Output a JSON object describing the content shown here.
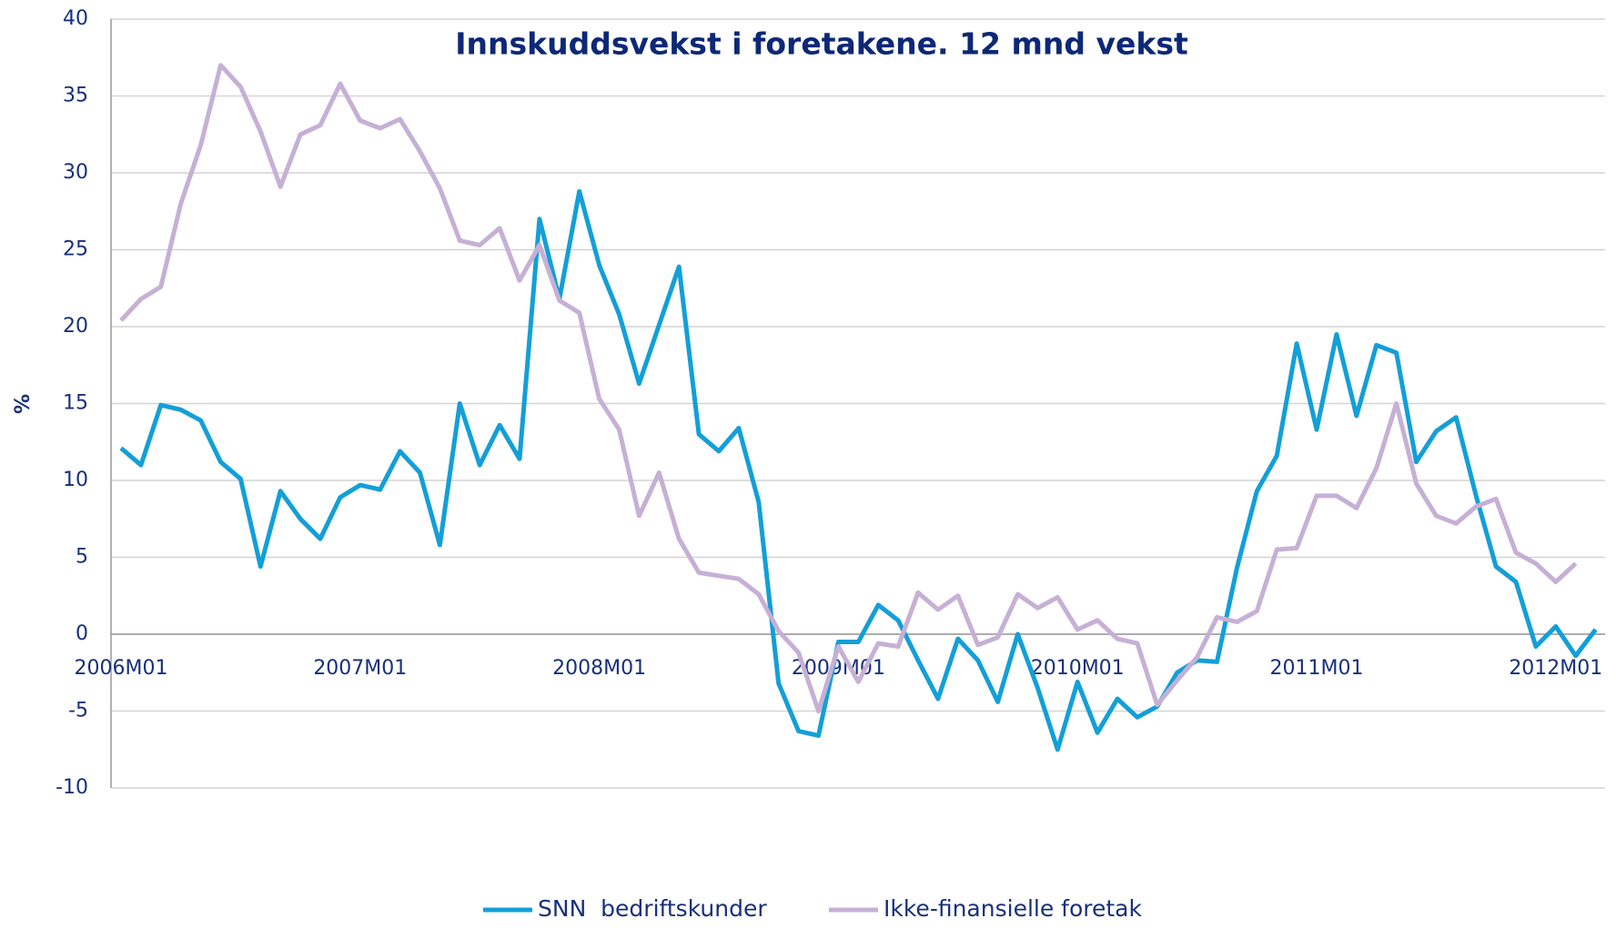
{
  "chart_data": {
    "type": "line",
    "title": "Innskuddsvekst i foretakene. 12 mnd vekst",
    "y_label": "%",
    "categories": [
      "2006M01",
      null,
      null,
      null,
      null,
      null,
      null,
      null,
      null,
      null,
      null,
      null,
      "2007M01",
      null,
      null,
      null,
      null,
      null,
      null,
      null,
      null,
      null,
      null,
      null,
      "2008M01",
      null,
      null,
      null,
      null,
      null,
      null,
      null,
      null,
      null,
      null,
      null,
      "2009M01",
      null,
      null,
      null,
      null,
      null,
      null,
      null,
      null,
      null,
      null,
      null,
      "2010M01",
      null,
      null,
      null,
      null,
      null,
      null,
      null,
      null,
      null,
      null,
      null,
      "2011M01",
      null,
      null,
      null,
      null,
      null,
      null,
      null,
      null,
      null,
      null,
      null,
      "2012M01",
      null,
      null
    ],
    "series": [
      {
        "name": "SNN  bedriftskunder",
        "color": "#139fd8",
        "values": [
          12.1,
          11.0,
          14.9,
          14.6,
          13.9,
          11.2,
          10.1,
          4.4,
          9.3,
          7.5,
          6.2,
          8.9,
          9.7,
          9.4,
          11.9,
          10.5,
          5.8,
          15.0,
          11.0,
          13.6,
          11.4,
          27.0,
          21.8,
          28.8,
          24.0,
          20.8,
          16.3,
          20.1,
          23.9,
          13.0,
          11.9,
          13.4,
          8.6,
          -3.2,
          -6.3,
          -6.6,
          -0.5,
          -0.5,
          1.9,
          0.9,
          -1.7,
          -4.2,
          -0.3,
          -1.7,
          -4.4,
          0.0,
          -3.5,
          -7.5,
          -3.1,
          -6.4,
          -4.2,
          -5.4,
          -4.7,
          -2.5,
          -1.7,
          -1.8,
          4.3,
          9.3,
          11.6,
          18.9,
          13.3,
          19.5,
          14.2,
          18.8,
          18.3,
          11.2,
          13.2,
          14.1,
          9.0,
          4.4,
          3.4,
          -0.8,
          0.5,
          -1.4,
          0.3
        ]
      },
      {
        "name": "Ikke-finansielle foretak",
        "color": "#c6b0d5",
        "values": [
          20.4,
          21.8,
          22.6,
          28.0,
          31.8,
          37.0,
          35.6,
          32.7,
          29.1,
          32.5,
          33.1,
          35.8,
          33.4,
          32.9,
          33.5,
          31.4,
          29.0,
          25.6,
          25.3,
          26.4,
          23.0,
          25.3,
          21.7,
          20.9,
          15.3,
          13.3,
          7.7,
          10.5,
          6.2,
          4.0,
          3.8,
          3.6,
          2.6,
          0.2,
          -1.2,
          -5.0,
          -0.8,
          -3.1,
          -0.6,
          -0.8,
          2.7,
          1.6,
          2.5,
          -0.7,
          -0.2,
          2.6,
          1.7,
          2.4,
          0.3,
          0.9,
          -0.3,
          -0.6,
          -4.6,
          -3.0,
          -1.5,
          1.1,
          0.8,
          1.5,
          5.5,
          5.6,
          9.0,
          9.0,
          8.2,
          10.8,
          15.0,
          9.8,
          7.7,
          7.2,
          8.3,
          8.8,
          5.3,
          4.6,
          3.4,
          4.6,
          null
        ]
      }
    ],
    "ylim": [
      -10,
      40
    ],
    "yticks": [
      -10,
      -5,
      0,
      5,
      10,
      15,
      20,
      25,
      30,
      35,
      40
    ],
    "grid": true,
    "legend": "bottom"
  }
}
